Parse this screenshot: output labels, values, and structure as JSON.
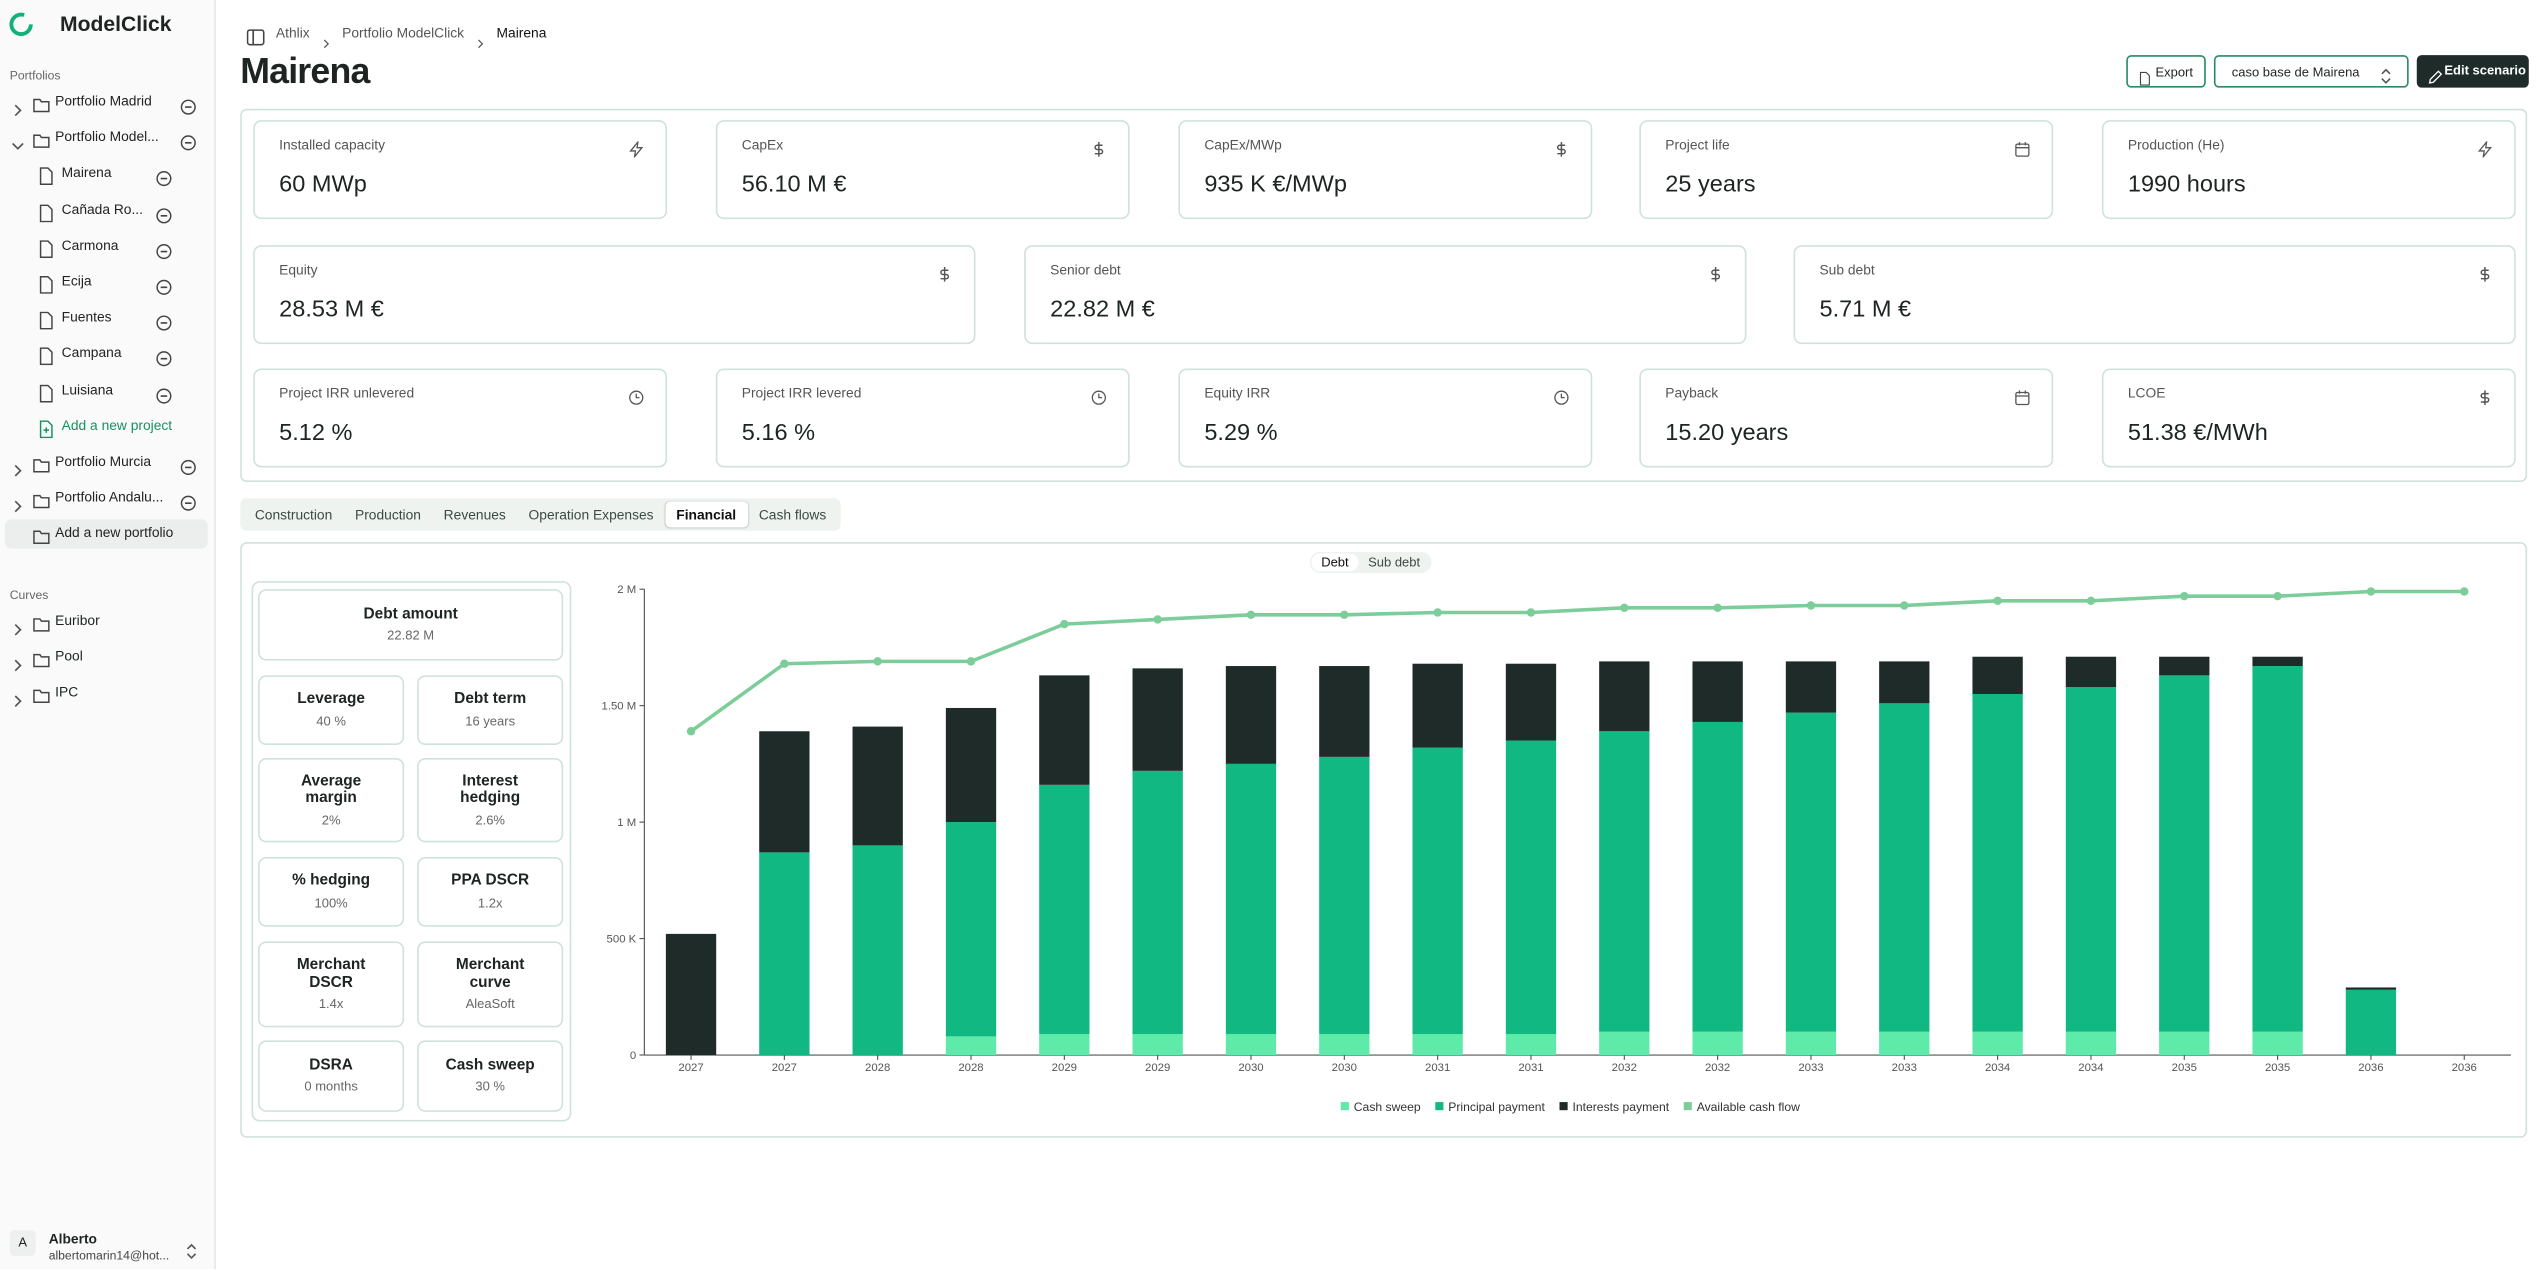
{
  "sidebar": {
    "brand": "ModelClick",
    "portfolios_label": "Portfolios",
    "portfolios": [
      {
        "name": "Portfolio Madrid"
      },
      {
        "name": "Portfolio Model...",
        "projects": [
          "Mairena",
          "Cañada Ro...",
          "Carmona",
          "Ecija",
          "Fuentes",
          "Campana",
          "Luisiana"
        ],
        "add_project": "Add a new project"
      },
      {
        "name": "Portfolio Murcia"
      },
      {
        "name": "Portfolio Andalu..."
      }
    ],
    "add_portfolio": "Add a new portfolio",
    "curves_label": "Curves",
    "curves": [
      "Euribor",
      "Pool",
      "IPC"
    ],
    "user": {
      "initial": "A",
      "name": "Alberto",
      "email": "albertomarin14@hot..."
    }
  },
  "breadcrumb": [
    "Athlix",
    "Portfolio ModelClick",
    "Mairena"
  ],
  "header": {
    "title": "Mairena",
    "export": "Export",
    "scenario": "caso base de Mairena",
    "edit": "Edit scenario"
  },
  "kpis": [
    [
      {
        "label": "Installed capacity",
        "value": "60 MWp"
      },
      {
        "label": "CapEx",
        "value": "56.10 M €"
      },
      {
        "label": "CapEx/MWp",
        "value": "935 K €/MWp"
      },
      {
        "label": "Project life",
        "value": "25 years"
      },
      {
        "label": "Production (He)",
        "value": "1990 hours"
      }
    ],
    [
      {
        "label": "Equity",
        "value": "28.53 M €"
      },
      {
        "label": "Senior debt",
        "value": "22.82 M €"
      },
      {
        "label": "Sub debt",
        "value": "5.71 M €"
      }
    ],
    [
      {
        "label": "Project IRR unlevered",
        "value": "5.12 %"
      },
      {
        "label": "Project IRR levered",
        "value": "5.16 %"
      },
      {
        "label": "Equity IRR",
        "value": "5.29 %"
      },
      {
        "label": "Payback",
        "value": "15.20 years"
      },
      {
        "label": "LCOE",
        "value": "51.38 €/MWh"
      }
    ]
  ],
  "tabs": {
    "items": [
      "Construction",
      "Production",
      "Revenues",
      "Operation Expenses",
      "Financial",
      "Cash flows"
    ],
    "active": 4
  },
  "debt_toggle": {
    "items": [
      "Debt",
      "Sub debt"
    ],
    "active": 0
  },
  "debt_amount": {
    "label": "Debt amount",
    "value": "22.82 M"
  },
  "params": [
    {
      "label": "Leverage",
      "value": "40 %"
    },
    {
      "label": "Debt term",
      "value": "16 years"
    },
    {
      "label": "Average margin",
      "value": "2%"
    },
    {
      "label": "Interest hedging",
      "value": "2.6%"
    },
    {
      "label": "% hedging",
      "value": "100%"
    },
    {
      "label": "PPA DSCR",
      "value": "1.2x"
    },
    {
      "label": "Merchant DSCR",
      "value": "1.4x"
    },
    {
      "label": "Merchant curve",
      "value": "AleaSoft"
    },
    {
      "label": "DSRA",
      "value": "0 months"
    },
    {
      "label": "Cash sweep",
      "value": "30 %"
    }
  ],
  "chart_data": {
    "type": "bar",
    "stacked": true,
    "categories": [
      "2027",
      "2027",
      "2028",
      "2028",
      "2029",
      "2029",
      "2030",
      "2030",
      "2031",
      "2031",
      "2032",
      "2032",
      "2033",
      "2033",
      "2034",
      "2034",
      "2035",
      "2035",
      "2036",
      "2036"
    ],
    "series": [
      {
        "name": "Cash sweep",
        "color": "#5eeaa8",
        "values": [
          0,
          0,
          0,
          80000,
          90000,
          90000,
          90000,
          90000,
          90000,
          90000,
          100000,
          100000,
          100000,
          100000,
          100000,
          100000,
          100000,
          100000,
          0,
          0
        ]
      },
      {
        "name": "Principal payment",
        "color": "#12b882",
        "values": [
          0,
          870000,
          900000,
          920000,
          1070000,
          1130000,
          1160000,
          1190000,
          1230000,
          1260000,
          1290000,
          1330000,
          1370000,
          1410000,
          1450000,
          1480000,
          1530000,
          1570000,
          280000,
          0
        ]
      },
      {
        "name": "Interests payment",
        "color": "#1f2b28",
        "values": [
          520000,
          520000,
          510000,
          490000,
          470000,
          440000,
          420000,
          390000,
          360000,
          330000,
          300000,
          260000,
          220000,
          180000,
          160000,
          130000,
          80000,
          40000,
          10000,
          0
        ]
      },
      {
        "name": "Available cash flow",
        "type": "line",
        "color": "#7ccd9a",
        "values": [
          1390000,
          1680000,
          1690000,
          1690000,
          1850000,
          1870000,
          1890000,
          1890000,
          1900000,
          1900000,
          1920000,
          1920000,
          1930000,
          1930000,
          1950000,
          1950000,
          1970000,
          1970000,
          1990000,
          1990000
        ]
      }
    ],
    "ylim": [
      0,
      2000000
    ],
    "yticks": [
      0,
      {
        "value": 500000,
        "label": "500 K"
      },
      {
        "value": 1000000,
        "label": "1 M"
      },
      {
        "value": 1500000,
        "label": "1.50 M"
      },
      {
        "value": 2000000,
        "label": "2 M"
      }
    ],
    "grid": false,
    "legend": "bottom"
  }
}
